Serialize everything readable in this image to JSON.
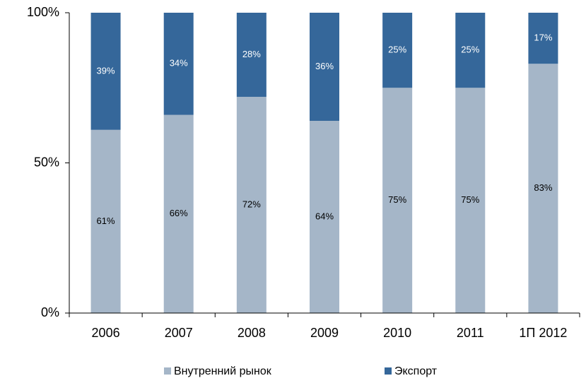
{
  "chart_data": {
    "type": "stacked_bar",
    "categories": [
      "2006",
      "2007",
      "2008",
      "2009",
      "2010",
      "2011",
      "1П 2012"
    ],
    "series": [
      {
        "name": "Внутренний рынок",
        "color": "#a5b6c8",
        "values": [
          61,
          66,
          72,
          64,
          75,
          75,
          83
        ],
        "value_labels": [
          "61%",
          "66%",
          "72%",
          "64%",
          "75%",
          "75%",
          "83%"
        ]
      },
      {
        "name": "Экспорт",
        "color": "#35679a",
        "values": [
          39,
          34,
          28,
          36,
          25,
          25,
          17
        ],
        "value_labels": [
          "39%",
          "34%",
          "28%",
          "36%",
          "25%",
          "25%",
          "17%"
        ]
      }
    ],
    "ylim": [
      0,
      100
    ],
    "yticks": [
      {
        "value": 0,
        "label": "0%"
      },
      {
        "value": 50,
        "label": "50%"
      },
      {
        "value": 100,
        "label": "100%"
      }
    ],
    "legend": "bottom"
  }
}
